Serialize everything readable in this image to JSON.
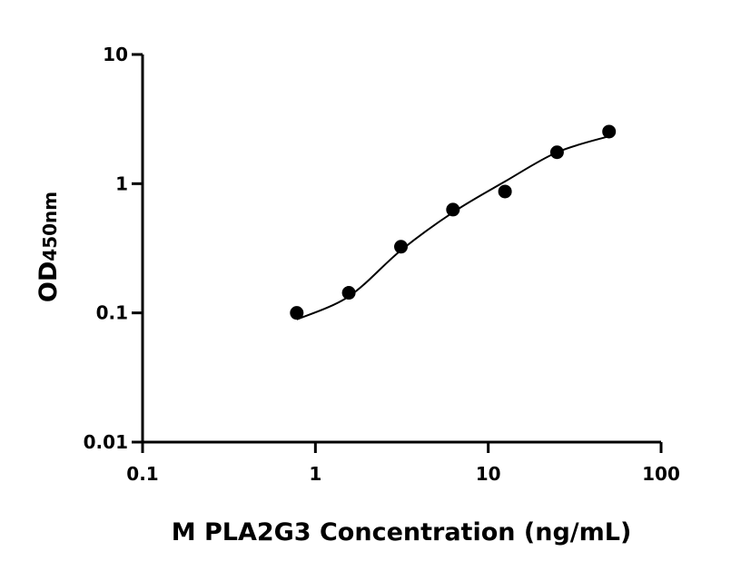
{
  "chart_data": {
    "type": "scatter",
    "x_label": "M PLA2G3 Concentration (ng/mL)",
    "y_label": "OD",
    "y_label_sub": "450nm",
    "xscale": "log",
    "yscale": "log",
    "xlim": [
      0.1,
      100
    ],
    "ylim": [
      0.01,
      10
    ],
    "xticks": [
      0.1,
      1,
      10,
      100
    ],
    "yticks": [
      0.01,
      0.1,
      1,
      10
    ],
    "series": [
      {
        "mode": "markers",
        "color": "#000000",
        "x": [
          0.78,
          1.56,
          3.125,
          6.25,
          12.5,
          25,
          50
        ],
        "values": [
          0.1,
          0.143,
          0.325,
          0.63,
          0.87,
          1.75,
          2.53
        ]
      },
      {
        "mode": "line",
        "color": "#000000",
        "x": [
          0.78,
          1.56,
          3.125,
          6.25,
          12.5,
          25,
          50
        ],
        "values": [
          0.089,
          0.134,
          0.305,
          0.6,
          1.04,
          1.75,
          2.33
        ]
      }
    ]
  }
}
